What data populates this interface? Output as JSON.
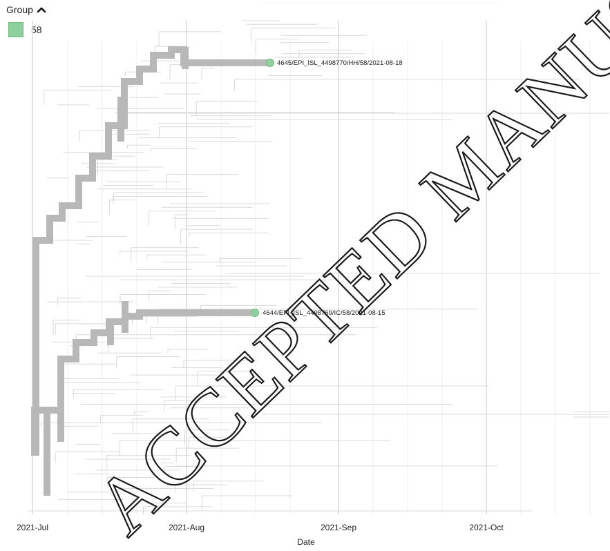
{
  "legend": {
    "title": "Group",
    "toggle_icon": "chevron-up-icon",
    "items": [
      {
        "label": "58",
        "color": "#8fd19e"
      }
    ]
  },
  "axis": {
    "label": "Date",
    "ticks": [
      "2021-Jul",
      "2021-Aug",
      "2021-Sep",
      "2021-Oct"
    ]
  },
  "highlighted_tips": [
    {
      "label": "4645/EPI_ISL_4498770/HH/58/2021-08-18",
      "date": "2021-08-18",
      "group": "58"
    },
    {
      "label": "4644/EPI_ISL_4498769/IC/58/2021-08-15",
      "date": "2021-08-15",
      "group": "58"
    }
  ],
  "colors": {
    "branch": "#d9d9d9",
    "highlight_branch": "#b8b8b8",
    "tip": "#8fd19e",
    "grid": "#e4e4e4"
  },
  "watermark": "ACCEPTED MANUSCRIPT"
}
